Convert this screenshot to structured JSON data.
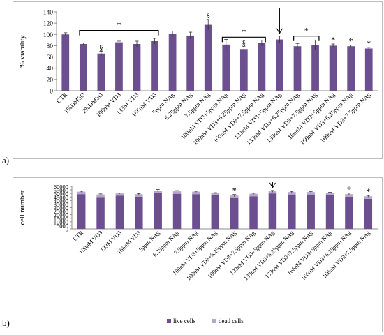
{
  "panel_a": {
    "letter": "a)"
  },
  "panel_b": {
    "letter": "b)"
  },
  "colors": {
    "bar": "#6b4f8f",
    "dead": "#b7a7cc",
    "axis": "#8c8c8c",
    "text": "#000000"
  },
  "chart_data": [
    {
      "type": "bar",
      "ylabel": "% viability",
      "ylim": [
        0,
        140
      ],
      "yticks": [
        0,
        20,
        40,
        60,
        80,
        100,
        120,
        140
      ],
      "categories": [
        "CTR",
        "1%DMSO",
        "2%DMSO",
        "100nM VD3",
        "133M VD3",
        "166nM VD3",
        "5ppm NAg",
        "6.25ppm NAg",
        "7.5ppm NAg",
        "100nM VD3+5ppm NAg",
        "100nM VD3+6.25ppm NAg",
        "100nM VD3+7.5ppm NAg",
        "133nM VD3+5ppm NAg",
        "133nM VD3+6.25ppm NAg",
        "133nM VD3+7.5ppm NAg",
        "166nM VD3+5ppm NAg",
        "166nM VD3+6.25ppm NAg",
        "166nM VD3+7.5ppm NAg"
      ],
      "values": [
        100,
        83,
        66,
        86,
        83,
        88,
        101,
        98,
        117,
        82,
        74,
        85,
        91,
        79,
        81,
        80,
        79,
        75
      ],
      "errors": [
        3,
        2,
        4,
        2,
        5,
        5,
        5,
        6,
        9,
        9,
        4,
        5,
        6,
        5,
        9,
        3,
        2,
        2
      ],
      "annotations": [
        {
          "type": "bracket",
          "from": 1,
          "to": 5,
          "y": 107,
          "label": "*"
        },
        {
          "type": "bracket",
          "from": 9,
          "to": 11,
          "y": 95,
          "label": "*"
        },
        {
          "type": "bracket",
          "from": 13,
          "to": 14,
          "y": 97,
          "label": "*"
        },
        {
          "type": "mark",
          "index": 2,
          "label": "§"
        },
        {
          "type": "mark",
          "index": 8,
          "label": "§"
        },
        {
          "type": "mark",
          "index": 10,
          "label": "§"
        },
        {
          "type": "mark",
          "index": 15,
          "label": "*"
        },
        {
          "type": "mark",
          "index": 16,
          "label": "*"
        },
        {
          "type": "mark",
          "index": 17,
          "label": "*"
        },
        {
          "type": "arrow",
          "index": 12
        }
      ]
    },
    {
      "type": "bar",
      "stacked": true,
      "ylabel": "cell number",
      "ylim": [
        0,
        60000
      ],
      "yticks": [
        0,
        5000,
        10000,
        15000,
        20000,
        25000,
        30000,
        35000,
        40000,
        45000,
        50000,
        55000,
        60000
      ],
      "categories": [
        "CTR",
        "100nM VD3",
        "133M VD3",
        "166nM VD3",
        "5ppm NAg",
        "6.25ppm NAg",
        "7.5ppm NAg",
        "100nM VD3+5ppm NAg",
        "100nM VD3+6.25ppm NAg",
        "100nM VD3+7.5ppm NAg",
        "133nM VD3+5ppm NAg",
        "133nM VD3+6.25ppm NAg",
        "133nM VD3+7.5ppm NAg",
        "166nM VD3+5ppm NAg",
        "166nM VD3+6.25ppm NAg",
        "166nM VD3+7.5ppm NAg"
      ],
      "series": [
        {
          "name": "live cells",
          "values": [
            49000,
            45000,
            47000,
            45500,
            50500,
            49500,
            49000,
            47500,
            43500,
            46000,
            50000,
            48500,
            48500,
            48000,
            45500,
            42500
          ]
        },
        {
          "name": "dead cells",
          "values": [
            3500,
            3500,
            3000,
            3500,
            3500,
            3500,
            3500,
            3000,
            3500,
            3500,
            3000,
            3500,
            3500,
            3000,
            3500,
            3500
          ]
        }
      ],
      "errors": [
        700,
        800,
        600,
        700,
        1600,
        1000,
        700,
        600,
        1500,
        800,
        1200,
        900,
        800,
        700,
        1400,
        1100
      ],
      "annotations": [
        {
          "type": "mark",
          "index": 8,
          "label": "*"
        },
        {
          "type": "mark",
          "index": 14,
          "label": "*"
        },
        {
          "type": "mark",
          "index": 15,
          "label": "*"
        },
        {
          "type": "arrow",
          "index": 10
        }
      ],
      "legend": {
        "position": "bottom"
      }
    }
  ]
}
